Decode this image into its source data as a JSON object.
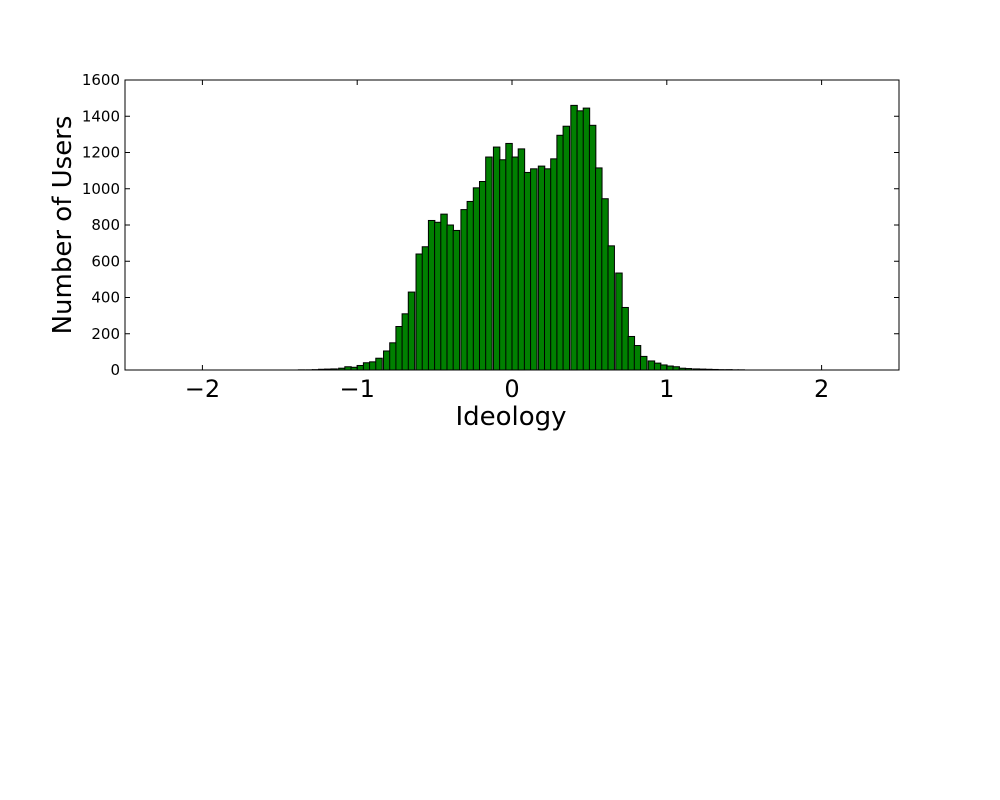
{
  "chart_data": {
    "type": "bar",
    "title": "",
    "xlabel": "Ideology",
    "ylabel": "Number of Users",
    "xlim": [
      -2.5,
      2.5
    ],
    "ylim": [
      0,
      1600
    ],
    "grid": false,
    "bar_color": "#008000",
    "edge_color": "#000000",
    "bin_width": 0.0417,
    "x_ticks": [
      {
        "value": -2,
        "label": "−2"
      },
      {
        "value": -1,
        "label": "−1"
      },
      {
        "value": 0,
        "label": "0"
      },
      {
        "value": 1,
        "label": "1"
      },
      {
        "value": 2,
        "label": "2"
      }
    ],
    "y_ticks": [
      {
        "value": 0,
        "label": "0"
      },
      {
        "value": 200,
        "label": "200"
      },
      {
        "value": 400,
        "label": "400"
      },
      {
        "value": 600,
        "label": "600"
      },
      {
        "value": 800,
        "label": "800"
      },
      {
        "value": 1000,
        "label": "1000"
      },
      {
        "value": 1200,
        "label": "1200"
      },
      {
        "value": 1400,
        "label": "1400"
      },
      {
        "value": 1600,
        "label": "1600"
      }
    ],
    "x": [
      -2.5,
      -2.46,
      -2.42,
      -2.38,
      -2.33,
      -2.29,
      -2.25,
      -2.21,
      -2.17,
      -2.12,
      -2.08,
      -2.04,
      -2.0,
      -1.96,
      -1.92,
      -1.88,
      -1.83,
      -1.79,
      -1.75,
      -1.71,
      -1.67,
      -1.62,
      -1.58,
      -1.54,
      -1.5,
      -1.46,
      -1.42,
      -1.38,
      -1.33,
      -1.29,
      -1.25,
      -1.21,
      -1.17,
      -1.12,
      -1.08,
      -1.04,
      -1.0,
      -0.96,
      -0.92,
      -0.88,
      -0.83,
      -0.79,
      -0.75,
      -0.71,
      -0.67,
      -0.62,
      -0.58,
      -0.54,
      -0.5,
      -0.46,
      -0.42,
      -0.38,
      -0.33,
      -0.29,
      -0.25,
      -0.21,
      -0.17,
      -0.12,
      -0.08,
      -0.04,
      0.0,
      0.04,
      0.08,
      0.12,
      0.17,
      0.21,
      0.25,
      0.29,
      0.33,
      0.38,
      0.42,
      0.46,
      0.5,
      0.54,
      0.58,
      0.62,
      0.67,
      0.71,
      0.75,
      0.79,
      0.83,
      0.88,
      0.92,
      0.96,
      1.0,
      1.04,
      1.08,
      1.12,
      1.17,
      1.21,
      1.25,
      1.29,
      1.33,
      1.38,
      1.42,
      1.46,
      1.5,
      1.54,
      1.58,
      1.62,
      1.67,
      1.71,
      1.75,
      1.79,
      1.83,
      1.88,
      1.92,
      1.96,
      2.0,
      2.04,
      2.08,
      2.12,
      2.17,
      2.21,
      2.25,
      2.29,
      2.33,
      2.38,
      2.42,
      2.46
    ],
    "values": [
      0,
      0,
      0,
      0,
      0,
      0,
      0,
      0,
      0,
      0,
      0,
      0,
      0,
      0,
      0,
      0,
      0,
      0,
      0,
      0,
      0,
      0,
      0,
      0,
      0,
      0,
      0,
      1,
      1,
      2,
      4,
      5,
      6,
      10,
      18,
      15,
      25,
      40,
      45,
      65,
      105,
      150,
      240,
      310,
      430,
      640,
      680,
      825,
      815,
      860,
      800,
      770,
      885,
      930,
      1005,
      1040,
      1175,
      1230,
      1160,
      1250,
      1175,
      1220,
      1090,
      1110,
      1125,
      1110,
      1165,
      1295,
      1345,
      1460,
      1430,
      1445,
      1350,
      1115,
      945,
      685,
      535,
      345,
      185,
      135,
      75,
      50,
      38,
      28,
      22,
      18,
      10,
      8,
      6,
      5,
      4,
      3,
      2,
      2,
      1,
      1,
      0,
      0,
      0,
      0,
      0,
      0,
      0,
      0,
      0,
      0,
      0,
      0,
      0,
      0,
      0,
      0,
      0,
      0,
      0,
      0,
      0,
      0,
      0,
      0
    ]
  }
}
